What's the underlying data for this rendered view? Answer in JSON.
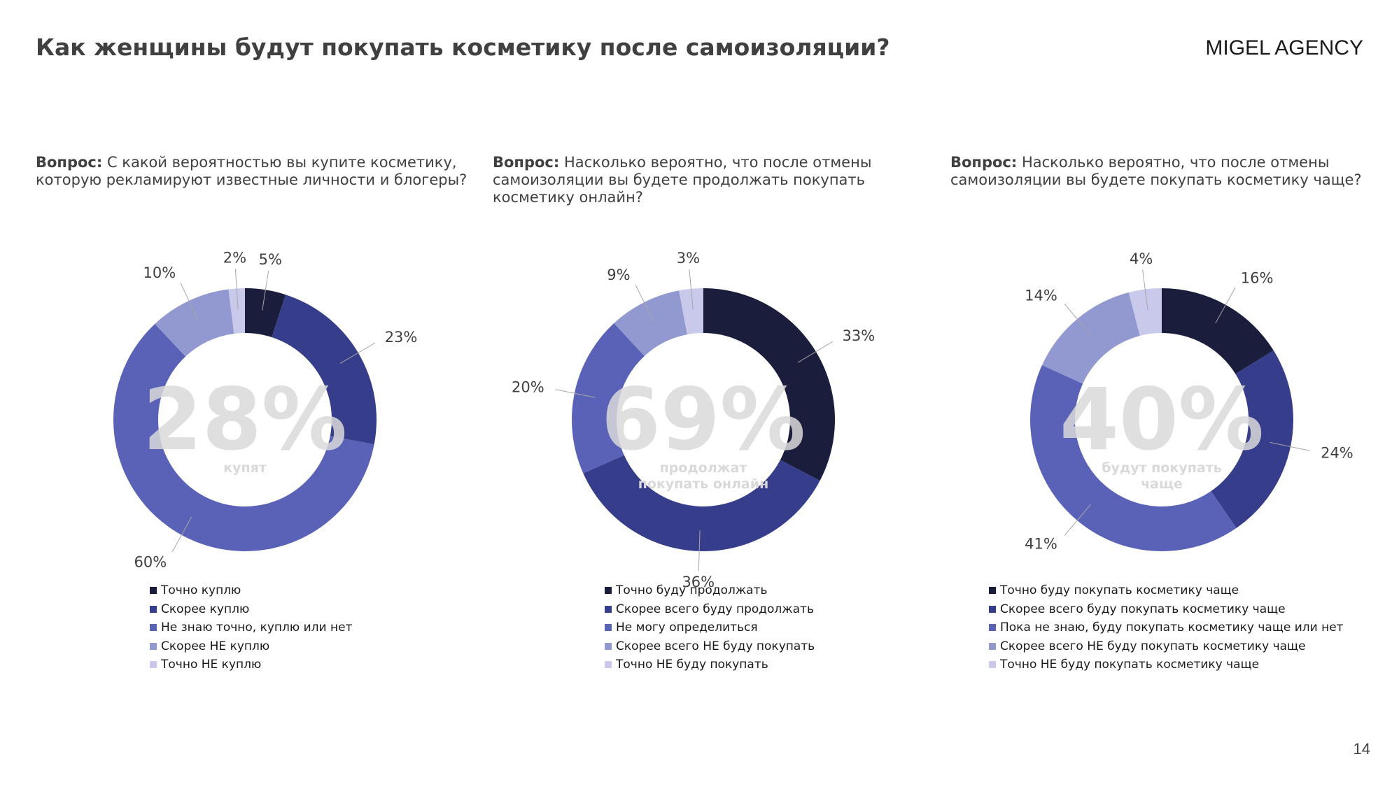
{
  "title": "Как женщины будут покупать косметику после самоизоляции?",
  "brand": "MIGEL AGENCY",
  "page_number": "14",
  "colors": [
    "#1b1d3d",
    "#363d8a",
    "#5a62b8",
    "#9298d0",
    "#c9caeb"
  ],
  "chart_data": [
    {
      "type": "pie",
      "question_prefix": "Вопрос:",
      "question": "С какой вероятностью вы купите косметику, которую рекламируют известные личности и блогеры?",
      "center_value": "28%",
      "center_label": "купят",
      "categories": [
        "Точно куплю",
        "Скорее куплю",
        "Не знаю точно, куплю или нет",
        "Скорее НЕ куплю",
        "Точно НЕ куплю"
      ],
      "values": [
        5,
        23,
        60,
        10,
        2
      ],
      "value_labels": [
        "5%",
        "23%",
        "60%",
        "10%",
        "2%"
      ]
    },
    {
      "type": "pie",
      "question_prefix": "Вопрос:",
      "question": "Насколько вероятно, что после отмены самоизоляции вы будете продолжать покупать косметику онлайн?",
      "center_value": "69%",
      "center_label": "продолжат покупать онлайн",
      "categories": [
        "Точно буду продолжать",
        "Скорее всего буду продолжать",
        "Не могу определиться",
        "Скорее всего НЕ буду покупать",
        "Точно НЕ буду покупать"
      ],
      "values": [
        33,
        36,
        20,
        9,
        3
      ],
      "value_labels": [
        "33%",
        "36%",
        "20%",
        "9%",
        "3%"
      ]
    },
    {
      "type": "pie",
      "question_prefix": "Вопрос:",
      "question": "Насколько вероятно, что после отмены самоизоляции вы будете покупать косметику чаще?",
      "center_value": "40%",
      "center_label": "будут покупать чаще",
      "categories": [
        "Точно буду покупать косметику чаще",
        "Скорее всего буду покупать косметику чаще",
        "Пока не знаю, буду покупать косметику чаще или нет",
        "Скорее всего НЕ буду покупать косметику чаще",
        "Точно НЕ буду покупать косметику чаще"
      ],
      "values": [
        16,
        24,
        41,
        14,
        4
      ],
      "value_labels": [
        "16%",
        "24%",
        "41%",
        "14%",
        "4%"
      ]
    }
  ]
}
